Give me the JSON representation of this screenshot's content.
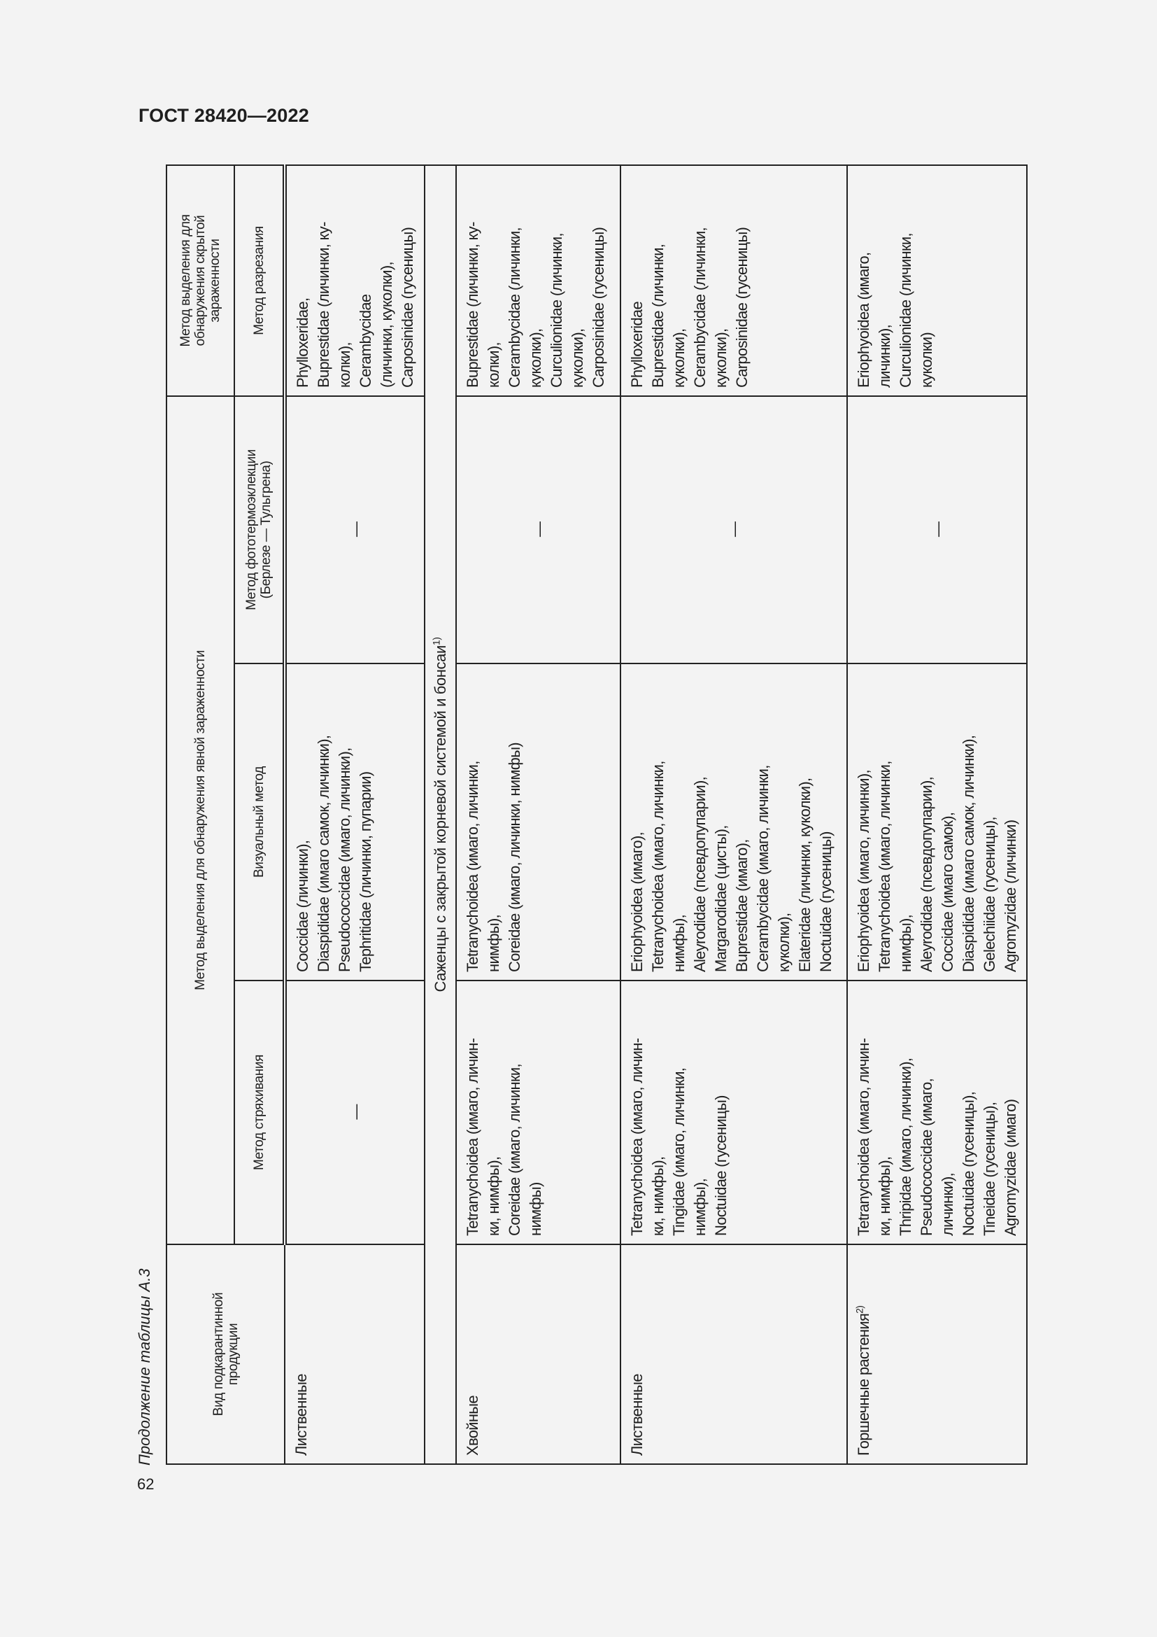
{
  "header": {
    "title": "ГОСТ 28420—2022"
  },
  "caption": "Продолжение таблицы А.3",
  "page_number": "62",
  "table": {
    "col_product": "Вид подкарантинной\nпродукции",
    "group_explicit": "Метод выделения для обнаружения явной зараженности",
    "group_hidden": "Метод выделения для\nобнаружения скрытой\nзараженности",
    "col_shaking": "Метод стряхивания",
    "col_visual": "Визуальный метод",
    "col_photothermo": "Метод фототермоэклекции\n(Берлезе — Тульгрена)",
    "col_cutting": "Метод разрезания",
    "rows": [
      {
        "product": "Лиственные",
        "shaking": "—",
        "visual": "Coccidae (личинки),\nDiaspididae (имаго самок, личинки),\nPseudococcidae (имаго, личинки),\nTephritidae (личинки, пупарии)",
        "photothermo": "—",
        "cutting": "Phylloxeridae,\nBuprestidae (личинки, ку-\nколки),\nCerambycidae\n(личинки, куколки),\nCarposinidae (гусеницы)"
      }
    ],
    "section": {
      "text": "Саженцы с закрытой корневой системой и бонсаи",
      "footnote": "1)"
    },
    "section_rows": [
      {
        "product": "Хвойные",
        "shaking": "Tetranychoidea (имаго, личин-\nки, нимфы),\nCoreidae (имаго, личинки,\nнимфы)",
        "visual": "Tetranychoidea (имаго, личинки,\nнимфы),\nCoreidae (имаго, личинки, нимфы)",
        "photothermo": "—",
        "cutting": "Buprestidae (личинки, ку-\nколки),\nCerambycidae (личинки,\nкуколки),\nCurculionidae (личинки,\nкуколки),\nCarposinidae (гусеницы)"
      },
      {
        "product": "Лиственные",
        "shaking": "Tetranychoidea (имаго, личин-\nки, нимфы),\nTingidae (имаго, личинки,\nнимфы),\nNoctuidae (гусеницы)",
        "visual": "Eriophyoidea (имаго),\nTetranychoidea (имаго, личинки,\nнимфы),\nAleyrodidae (псевдопупарии),\nMargarodidae (цисты),\nBuprestidae (имаго),\nCerambycidae (имаго, личинки,\nкуколки),\nElateridae (личинки, куколки),\nNoctuidae (гусеницы)",
        "photothermo": "—",
        "cutting": "Phylloxeridae\nBuprestidae (личинки,\nкуколки),\nCerambycidae (личинки,\nкуколки),\nCarposinidae (гусеницы)"
      },
      {
        "product": "Горшечные растения",
        "product_footnote": "2)",
        "shaking": "Tetranychoidea (имаго, личин-\nки, нимфы),\nThripidae (имаго, личинки),\nPseudococcidae (имаго,\nличинки),\nNoctuidae (гусеницы),\nTineidae (гусеницы),\nAgromyzidae (имаго)",
        "visual": "Eriophyoidea (имаго, личинки),\nTetranychoidea (имаго, личинки,\nнимфы),\nAleyrodidae (псевдопупарии),\nCoccidae (имаго самок),\nDiaspididae (имаго самок, личинки),\nGelechiidae (гусеницы),\nAgromyzidae (личинки)",
        "photothermo": "—",
        "cutting": "Eriophyoidea (имаго,\nличинки),\nCurculionidae (личинки,\nкуколки)"
      }
    ]
  }
}
